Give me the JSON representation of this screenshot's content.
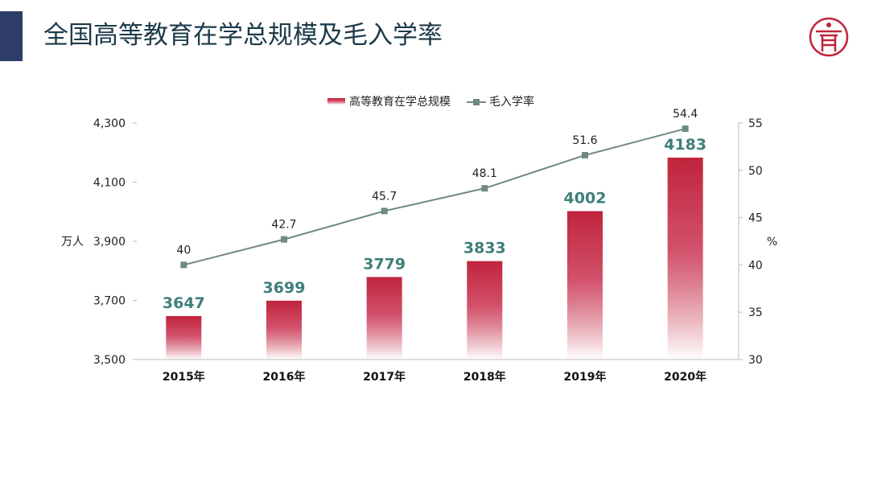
{
  "header": {
    "title": "全国高等教育在学总规模及毛入学率",
    "logo_icon": "university-seal-icon"
  },
  "chart_data": {
    "type": "bar+line",
    "categories": [
      "2015年",
      "2016年",
      "2017年",
      "2018年",
      "2019年",
      "2020年"
    ],
    "series": [
      {
        "name": "高等教育在学总规模",
        "type": "bar",
        "axis": "left",
        "values": [
          3647,
          3699,
          3779,
          3833,
          4002,
          4183
        ],
        "color": "#c0243c",
        "label_color": "#3f7f7a"
      },
      {
        "name": "毛入学率",
        "type": "line",
        "axis": "right",
        "values": [
          40,
          42.7,
          45.7,
          48.1,
          51.6,
          54.4
        ],
        "color": "#6f8a80"
      }
    ],
    "y_left": {
      "label": "万人",
      "range": [
        3500,
        4300
      ],
      "ticks": [
        "3,500",
        "3,700",
        "3,900",
        "4,100",
        "4,300"
      ],
      "tick_values": [
        3500,
        3700,
        3900,
        4100,
        4300
      ]
    },
    "y_right": {
      "label": "%",
      "range": [
        30,
        55
      ],
      "ticks": [
        "30",
        "35",
        "40",
        "45",
        "50",
        "55"
      ],
      "tick_values": [
        30,
        35,
        40,
        45,
        50,
        55
      ]
    },
    "legend": "top-center",
    "grid": false
  }
}
